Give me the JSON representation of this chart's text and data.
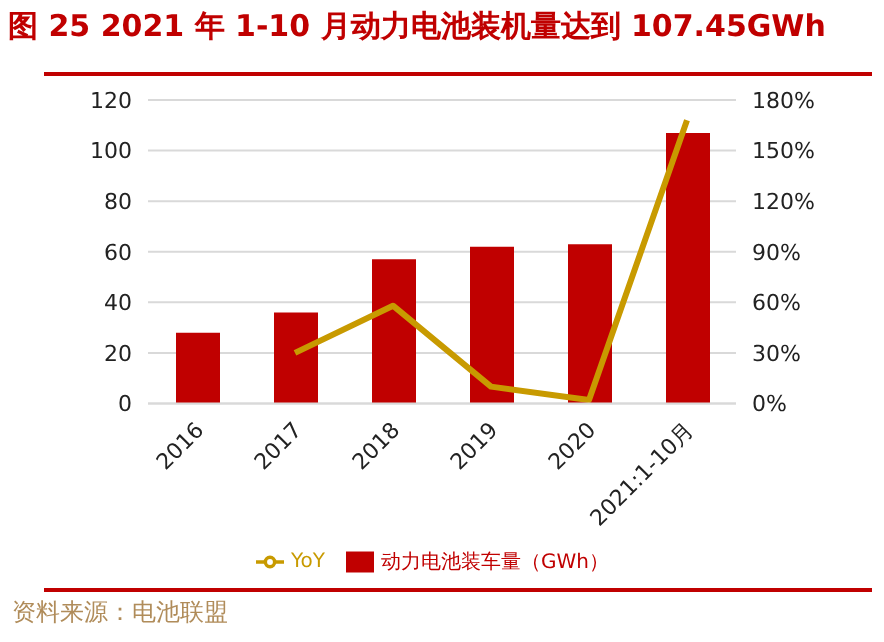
{
  "chart_data": {
    "type": "bar",
    "title": "图 25 2021 年 1-10 月动力电池装机量达到 107.45GWh",
    "categories": [
      "2016",
      "2017",
      "2018",
      "2019",
      "2020",
      "2021:1-10月"
    ],
    "series": [
      {
        "name": "动力电池装车量（GWh）",
        "color": "#c00000",
        "values": [
          28,
          36,
          57,
          62,
          63,
          107
        ]
      },
      {
        "name": "YoY",
        "type": "line",
        "axis": "y2",
        "color": "#c89a00",
        "values": [
          null,
          30,
          58,
          10,
          2,
          168
        ]
      }
    ],
    "ylim": [
      0,
      120
    ],
    "yticks": [
      0,
      20,
      40,
      60,
      80,
      100,
      120
    ],
    "y2lim": [
      0,
      180
    ],
    "y2ticks": [
      {
        "value": 0,
        "label": "0%"
      },
      {
        "value": 30,
        "label": "30%"
      },
      {
        "value": 60,
        "label": "60%"
      },
      {
        "value": 90,
        "label": "90%"
      },
      {
        "value": 120,
        "label": "120%"
      },
      {
        "value": 150,
        "label": "150%"
      },
      {
        "value": 180,
        "label": "180%"
      }
    ],
    "grid": "y",
    "legend": "bottom",
    "marker": "none",
    "annotations": [
      "资料来源：电池联盟"
    ]
  }
}
